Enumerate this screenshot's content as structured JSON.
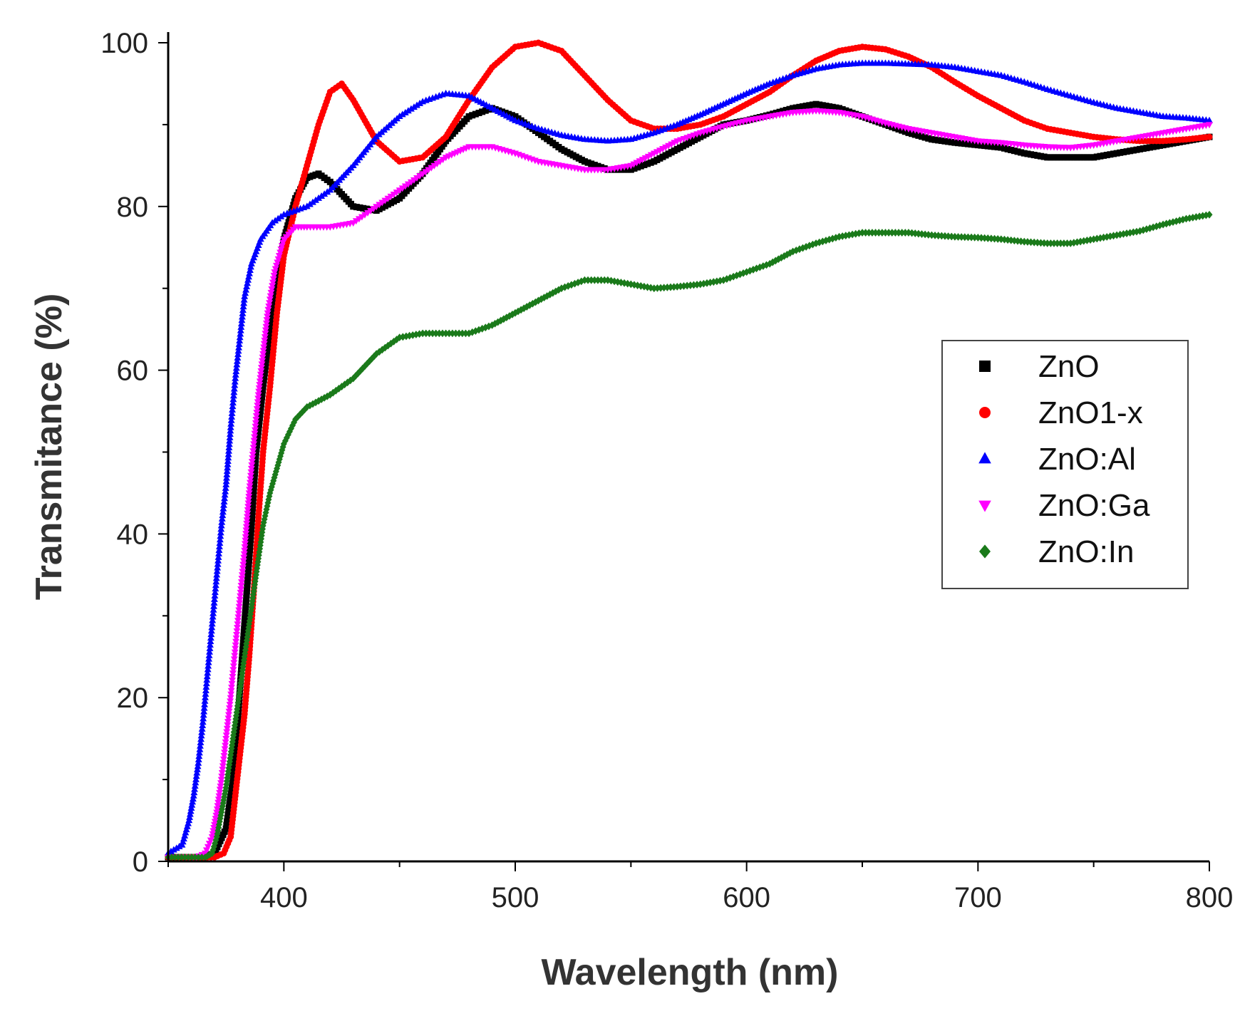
{
  "chart_data": {
    "type": "scatter",
    "title": "",
    "xlabel": "Wavelength (nm)",
    "ylabel": "Transmitance (%)",
    "xlim": [
      350,
      800
    ],
    "ylim": [
      0,
      100
    ],
    "x_ticks": [
      400,
      500,
      600,
      700,
      800
    ],
    "x_tick_labels": [
      "400",
      "500",
      "600",
      "700",
      "800"
    ],
    "y_ticks": [
      0,
      20,
      40,
      60,
      80,
      100
    ],
    "y_tick_labels": [
      "0",
      "20",
      "40",
      "60",
      "80",
      "100"
    ],
    "grid": false,
    "legend_position": "right",
    "series": [
      {
        "name": "ZnO",
        "color": "#000000",
        "marker": "square",
        "points": [
          [
            350,
            0.5
          ],
          [
            365,
            0.5
          ],
          [
            370,
            1
          ],
          [
            375,
            4
          ],
          [
            378,
            10
          ],
          [
            380,
            17
          ],
          [
            382,
            25
          ],
          [
            384,
            33
          ],
          [
            386,
            41
          ],
          [
            388,
            50
          ],
          [
            391,
            58
          ],
          [
            394,
            65
          ],
          [
            397,
            71
          ],
          [
            400,
            76
          ],
          [
            405,
            81
          ],
          [
            410,
            83.5
          ],
          [
            415,
            84
          ],
          [
            420,
            83
          ],
          [
            430,
            80
          ],
          [
            440,
            79.5
          ],
          [
            450,
            81
          ],
          [
            460,
            84
          ],
          [
            470,
            88
          ],
          [
            480,
            91
          ],
          [
            490,
            92
          ],
          [
            500,
            91
          ],
          [
            510,
            89
          ],
          [
            520,
            87
          ],
          [
            530,
            85.5
          ],
          [
            540,
            84.5
          ],
          [
            550,
            84.5
          ],
          [
            560,
            85.5
          ],
          [
            570,
            87
          ],
          [
            580,
            88.5
          ],
          [
            590,
            90
          ],
          [
            600,
            90.5
          ],
          [
            610,
            91.2
          ],
          [
            620,
            92
          ],
          [
            630,
            92.5
          ],
          [
            640,
            92
          ],
          [
            650,
            91
          ],
          [
            660,
            90
          ],
          [
            670,
            89
          ],
          [
            680,
            88.2
          ],
          [
            690,
            87.8
          ],
          [
            700,
            87.5
          ],
          [
            710,
            87.2
          ],
          [
            720,
            86.5
          ],
          [
            730,
            86
          ],
          [
            740,
            86
          ],
          [
            750,
            86
          ],
          [
            760,
            86.5
          ],
          [
            770,
            87
          ],
          [
            780,
            87.5
          ],
          [
            790,
            88
          ],
          [
            800,
            88.5
          ]
        ]
      },
      {
        "name": "ZnO1-x",
        "color": "#ff0000",
        "marker": "circle",
        "points": [
          [
            350,
            0.5
          ],
          [
            370,
            0.5
          ],
          [
            374,
            1
          ],
          [
            377,
            3
          ],
          [
            379,
            8
          ],
          [
            381,
            13
          ],
          [
            383,
            18
          ],
          [
            385,
            25
          ],
          [
            387,
            33
          ],
          [
            389,
            42
          ],
          [
            391,
            50
          ],
          [
            394,
            58
          ],
          [
            397,
            67
          ],
          [
            400,
            74
          ],
          [
            405,
            80
          ],
          [
            410,
            85
          ],
          [
            415,
            90
          ],
          [
            420,
            94
          ],
          [
            425,
            95
          ],
          [
            430,
            93
          ],
          [
            440,
            88
          ],
          [
            450,
            85.5
          ],
          [
            460,
            86
          ],
          [
            470,
            88.5
          ],
          [
            480,
            93
          ],
          [
            490,
            97
          ],
          [
            500,
            99.5
          ],
          [
            510,
            100
          ],
          [
            520,
            99
          ],
          [
            530,
            96
          ],
          [
            540,
            93
          ],
          [
            550,
            90.5
          ],
          [
            560,
            89.5
          ],
          [
            570,
            89.5
          ],
          [
            580,
            90
          ],
          [
            590,
            91
          ],
          [
            600,
            92.5
          ],
          [
            610,
            94
          ],
          [
            620,
            96
          ],
          [
            630,
            97.8
          ],
          [
            640,
            99
          ],
          [
            650,
            99.5
          ],
          [
            660,
            99.2
          ],
          [
            670,
            98.3
          ],
          [
            680,
            97
          ],
          [
            690,
            95.2
          ],
          [
            700,
            93.5
          ],
          [
            710,
            92
          ],
          [
            720,
            90.5
          ],
          [
            730,
            89.5
          ],
          [
            740,
            89
          ],
          [
            750,
            88.5
          ],
          [
            760,
            88.2
          ],
          [
            770,
            88
          ],
          [
            780,
            88
          ],
          [
            790,
            88.2
          ],
          [
            800,
            88.5
          ]
        ]
      },
      {
        "name": "ZnO:Al",
        "color": "#0000ff",
        "marker": "triangle-up",
        "points": [
          [
            350,
            1
          ],
          [
            356,
            2
          ],
          [
            359,
            5
          ],
          [
            361,
            8
          ],
          [
            363,
            12
          ],
          [
            365,
            17
          ],
          [
            367,
            23
          ],
          [
            369,
            29
          ],
          [
            371,
            35
          ],
          [
            373,
            41
          ],
          [
            375,
            46
          ],
          [
            377,
            53
          ],
          [
            379,
            59
          ],
          [
            381,
            64
          ],
          [
            383,
            69
          ],
          [
            386,
            73
          ],
          [
            390,
            76
          ],
          [
            395,
            78
          ],
          [
            400,
            79
          ],
          [
            410,
            80
          ],
          [
            420,
            82
          ],
          [
            430,
            85
          ],
          [
            440,
            88.5
          ],
          [
            450,
            91
          ],
          [
            460,
            92.8
          ],
          [
            470,
            93.8
          ],
          [
            480,
            93.5
          ],
          [
            490,
            92
          ],
          [
            500,
            90.5
          ],
          [
            510,
            89.5
          ],
          [
            520,
            88.7
          ],
          [
            530,
            88.2
          ],
          [
            540,
            88
          ],
          [
            550,
            88.2
          ],
          [
            560,
            89
          ],
          [
            570,
            90
          ],
          [
            580,
            91.2
          ],
          [
            590,
            92.5
          ],
          [
            600,
            93.8
          ],
          [
            610,
            95
          ],
          [
            620,
            96
          ],
          [
            630,
            96.8
          ],
          [
            640,
            97.3
          ],
          [
            650,
            97.5
          ],
          [
            660,
            97.5
          ],
          [
            670,
            97.4
          ],
          [
            680,
            97.3
          ],
          [
            690,
            97
          ],
          [
            700,
            96.5
          ],
          [
            710,
            96
          ],
          [
            720,
            95.2
          ],
          [
            730,
            94.3
          ],
          [
            740,
            93.5
          ],
          [
            750,
            92.7
          ],
          [
            760,
            92
          ],
          [
            770,
            91.5
          ],
          [
            780,
            91
          ],
          [
            790,
            90.8
          ],
          [
            800,
            90.5
          ]
        ]
      },
      {
        "name": "ZnO:Ga",
        "color": "#ff00ff",
        "marker": "triangle-down",
        "points": [
          [
            350,
            0.5
          ],
          [
            362,
            0.5
          ],
          [
            366,
            1
          ],
          [
            369,
            3
          ],
          [
            371,
            6
          ],
          [
            373,
            10
          ],
          [
            375,
            15
          ],
          [
            377,
            20
          ],
          [
            379,
            26
          ],
          [
            381,
            32
          ],
          [
            383,
            38
          ],
          [
            385,
            45
          ],
          [
            387,
            51
          ],
          [
            389,
            57
          ],
          [
            391,
            62
          ],
          [
            393,
            67
          ],
          [
            396,
            72
          ],
          [
            400,
            76
          ],
          [
            405,
            77.5
          ],
          [
            410,
            77.5
          ],
          [
            420,
            77.5
          ],
          [
            430,
            78
          ],
          [
            440,
            80
          ],
          [
            450,
            82
          ],
          [
            460,
            84
          ],
          [
            470,
            86
          ],
          [
            480,
            87.3
          ],
          [
            490,
            87.3
          ],
          [
            500,
            86.5
          ],
          [
            510,
            85.5
          ],
          [
            520,
            85
          ],
          [
            530,
            84.5
          ],
          [
            540,
            84.5
          ],
          [
            550,
            85
          ],
          [
            560,
            86.5
          ],
          [
            570,
            88
          ],
          [
            580,
            89
          ],
          [
            590,
            89.8
          ],
          [
            600,
            90.5
          ],
          [
            610,
            91
          ],
          [
            620,
            91.5
          ],
          [
            630,
            91.7
          ],
          [
            640,
            91.5
          ],
          [
            650,
            91
          ],
          [
            660,
            90.2
          ],
          [
            670,
            89.5
          ],
          [
            680,
            89
          ],
          [
            690,
            88.5
          ],
          [
            700,
            88
          ],
          [
            710,
            87.8
          ],
          [
            720,
            87.5
          ],
          [
            730,
            87.3
          ],
          [
            740,
            87.2
          ],
          [
            750,
            87.5
          ],
          [
            760,
            88
          ],
          [
            770,
            88.5
          ],
          [
            780,
            89
          ],
          [
            790,
            89.5
          ],
          [
            800,
            90
          ]
        ]
      },
      {
        "name": "ZnO:In",
        "color": "#1a7a1a",
        "marker": "diamond",
        "points": [
          [
            350,
            0.5
          ],
          [
            366,
            0.5
          ],
          [
            369,
            1
          ],
          [
            371,
            3
          ],
          [
            373,
            6
          ],
          [
            375,
            9
          ],
          [
            377,
            13
          ],
          [
            379,
            17
          ],
          [
            381,
            21
          ],
          [
            383,
            25
          ],
          [
            385,
            29
          ],
          [
            387,
            33
          ],
          [
            389,
            37
          ],
          [
            391,
            41
          ],
          [
            394,
            45
          ],
          [
            397,
            48
          ],
          [
            400,
            51
          ],
          [
            405,
            54
          ],
          [
            410,
            55.5
          ],
          [
            420,
            57
          ],
          [
            430,
            59
          ],
          [
            440,
            62
          ],
          [
            450,
            64
          ],
          [
            460,
            64.5
          ],
          [
            470,
            64.5
          ],
          [
            480,
            64.5
          ],
          [
            490,
            65.5
          ],
          [
            500,
            67
          ],
          [
            510,
            68.5
          ],
          [
            520,
            70
          ],
          [
            530,
            71
          ],
          [
            540,
            71
          ],
          [
            550,
            70.5
          ],
          [
            560,
            70
          ],
          [
            570,
            70.2
          ],
          [
            580,
            70.5
          ],
          [
            590,
            71
          ],
          [
            600,
            72
          ],
          [
            610,
            73
          ],
          [
            620,
            74.5
          ],
          [
            630,
            75.5
          ],
          [
            640,
            76.3
          ],
          [
            650,
            76.8
          ],
          [
            660,
            76.8
          ],
          [
            670,
            76.8
          ],
          [
            680,
            76.5
          ],
          [
            690,
            76.3
          ],
          [
            700,
            76.2
          ],
          [
            710,
            76
          ],
          [
            720,
            75.7
          ],
          [
            730,
            75.5
          ],
          [
            740,
            75.5
          ],
          [
            750,
            76
          ],
          [
            760,
            76.5
          ],
          [
            770,
            77
          ],
          [
            780,
            77.8
          ],
          [
            790,
            78.5
          ],
          [
            800,
            79
          ]
        ]
      }
    ]
  }
}
